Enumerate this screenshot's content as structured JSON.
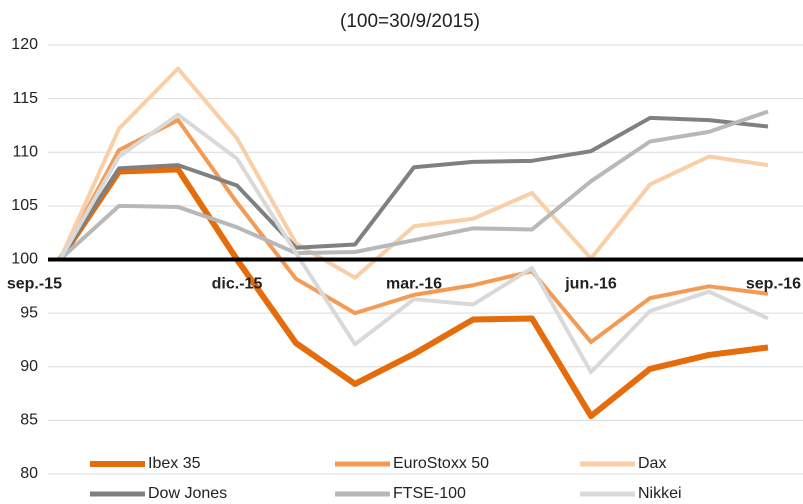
{
  "chart_data": {
    "type": "line",
    "title": "(100=30/9/2015)",
    "categories": [
      "sep.-15",
      null,
      null,
      "dic.-15",
      null,
      null,
      "mar.-16",
      null,
      null,
      "jun.-16",
      null,
      null,
      "sep.-16"
    ],
    "series": [
      {
        "name": "Ibex 35",
        "color": "#e46c0a",
        "values": [
          100,
          108.2,
          108.4,
          100,
          92.2,
          88.4,
          91.2,
          94.4,
          94.5,
          85.4,
          89.8,
          91.1,
          91.8
        ]
      },
      {
        "name": "EuroStoxx 50",
        "color": "#f39a55",
        "values": [
          100,
          110.2,
          113.0,
          105.3,
          98.2,
          95.0,
          96.7,
          97.6,
          98.9,
          92.3,
          96.4,
          97.5,
          96.8
        ]
      },
      {
        "name": "Dax",
        "color": "#f9cfa8",
        "values": [
          100,
          112.2,
          117.8,
          111.3,
          101.5,
          98.3,
          103.1,
          103.8,
          106.2,
          100.1,
          107.0,
          109.6,
          108.8
        ]
      },
      {
        "name": "Dow Jones",
        "color": "#808080",
        "values": [
          100,
          108.5,
          108.8,
          106.9,
          101.1,
          101.4,
          108.6,
          109.1,
          109.2,
          110.1,
          113.2,
          113.0,
          112.4
        ]
      },
      {
        "name": "FTSE-100",
        "color": "#b8b8b8",
        "values": [
          100,
          105.0,
          104.9,
          103.0,
          100.6,
          100.7,
          101.8,
          102.9,
          102.8,
          107.3,
          111.0,
          111.9,
          113.8
        ]
      },
      {
        "name": "Nikkei",
        "color": "#d9d9d9",
        "values": [
          100,
          109.6,
          113.5,
          109.4,
          100.6,
          92.1,
          96.3,
          95.8,
          99.2,
          89.5,
          95.2,
          97.0,
          94.5
        ]
      }
    ],
    "ylim": [
      80,
      120
    ],
    "yticks": [
      80,
      85,
      90,
      95,
      100,
      105,
      110,
      115,
      120
    ],
    "grid": true
  }
}
